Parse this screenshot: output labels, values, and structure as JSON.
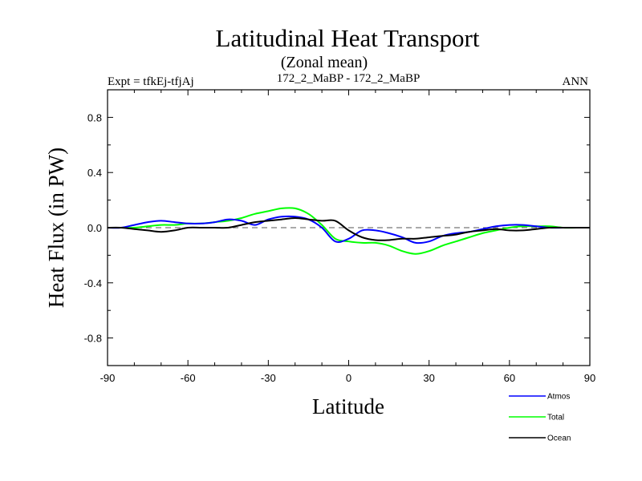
{
  "chart_data": {
    "type": "line",
    "title": "Latitudinal Heat Transport",
    "subtitle": "(Zonal mean)",
    "header_left": "Expt = tfkEj-tfjAj",
    "header_center": "172_2_MaBP - 172_2_MaBP",
    "header_right": "ANN",
    "xlabel": "Latitude",
    "ylabel": "Heat Flux (in PW)",
    "xlim": [
      -90,
      90
    ],
    "ylim": [
      -1.0,
      1.0
    ],
    "xticks": [
      -90,
      -60,
      -30,
      0,
      30,
      60,
      90
    ],
    "xtick_labels": [
      "-90",
      "-60",
      "-30",
      "0",
      "30",
      "60",
      "90"
    ],
    "yticks": [
      -0.8,
      -0.4,
      0.0,
      0.4,
      0.8
    ],
    "ytick_labels": [
      "-0.8",
      "-0.4",
      "0.0",
      "0.4",
      "0.8"
    ],
    "zero_line": "dashed",
    "grid": false,
    "legend_position": "bottom-right, below plot",
    "series": [
      {
        "name": "Atmos",
        "color": "#0000ff",
        "x": [
          -90,
          -85,
          -80,
          -75,
          -70,
          -65,
          -60,
          -55,
          -50,
          -45,
          -40,
          -35,
          -30,
          -25,
          -20,
          -15,
          -10,
          -5,
          0,
          5,
          10,
          15,
          20,
          25,
          30,
          35,
          40,
          45,
          50,
          55,
          60,
          65,
          70,
          75,
          80,
          85,
          90
        ],
        "y": [
          0.0,
          0.0,
          0.02,
          0.04,
          0.05,
          0.04,
          0.03,
          0.03,
          0.04,
          0.06,
          0.05,
          0.02,
          0.06,
          0.08,
          0.08,
          0.06,
          0.0,
          -0.1,
          -0.08,
          -0.02,
          -0.02,
          -0.04,
          -0.07,
          -0.11,
          -0.1,
          -0.06,
          -0.04,
          -0.03,
          -0.01,
          0.01,
          0.02,
          0.02,
          0.01,
          0.0,
          0.0,
          0.0,
          0.0
        ]
      },
      {
        "name": "Total",
        "color": "#00ff00",
        "x": [
          -90,
          -85,
          -80,
          -75,
          -70,
          -65,
          -60,
          -55,
          -50,
          -45,
          -40,
          -35,
          -30,
          -25,
          -20,
          -15,
          -10,
          -5,
          0,
          5,
          10,
          15,
          20,
          25,
          30,
          35,
          40,
          45,
          50,
          55,
          60,
          65,
          70,
          75,
          80,
          85,
          90
        ],
        "y": [
          0.0,
          0.0,
          0.0,
          0.01,
          0.02,
          0.02,
          0.03,
          0.03,
          0.04,
          0.05,
          0.07,
          0.1,
          0.12,
          0.14,
          0.14,
          0.1,
          0.02,
          -0.08,
          -0.1,
          -0.11,
          -0.11,
          -0.13,
          -0.17,
          -0.19,
          -0.17,
          -0.13,
          -0.1,
          -0.07,
          -0.04,
          -0.02,
          0.0,
          0.01,
          0.01,
          0.01,
          0.0,
          0.0,
          0.0
        ]
      },
      {
        "name": "Ocean",
        "color": "#000000",
        "x": [
          -90,
          -85,
          -80,
          -75,
          -70,
          -65,
          -60,
          -55,
          -50,
          -45,
          -40,
          -35,
          -30,
          -25,
          -20,
          -15,
          -10,
          -5,
          0,
          5,
          10,
          15,
          20,
          25,
          30,
          35,
          40,
          45,
          50,
          55,
          60,
          65,
          70,
          75,
          80,
          85,
          90
        ],
        "y": [
          0.0,
          0.0,
          -0.01,
          -0.02,
          -0.03,
          -0.02,
          0.0,
          0.0,
          0.0,
          0.0,
          0.02,
          0.04,
          0.05,
          0.06,
          0.07,
          0.06,
          0.05,
          0.05,
          -0.02,
          -0.07,
          -0.09,
          -0.09,
          -0.08,
          -0.08,
          -0.07,
          -0.06,
          -0.05,
          -0.03,
          -0.02,
          -0.01,
          -0.02,
          -0.02,
          -0.01,
          0.0,
          0.0,
          0.0,
          0.0
        ]
      }
    ]
  }
}
